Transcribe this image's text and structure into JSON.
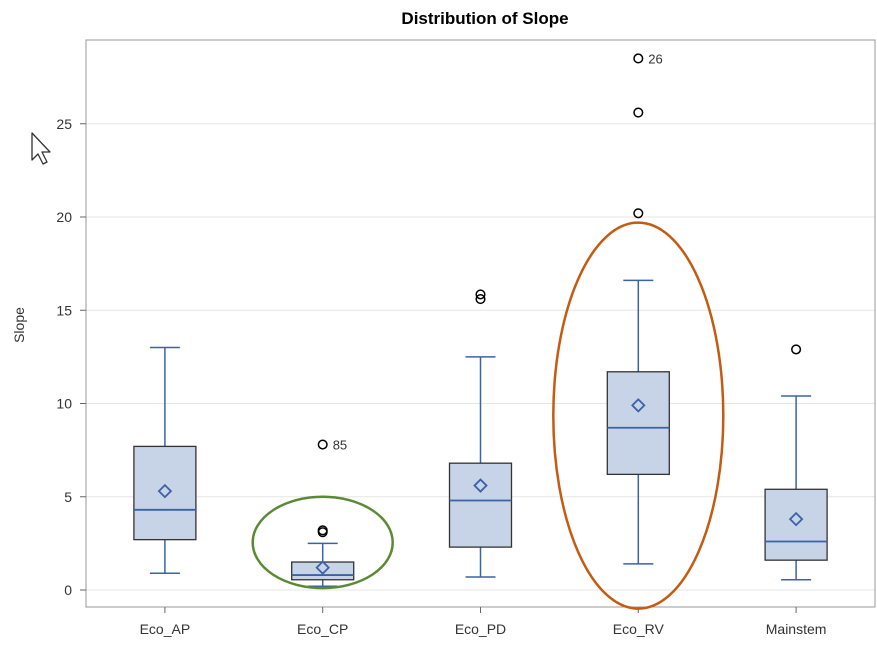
{
  "chart_data": {
    "type": "box",
    "title": "Distribution of Slope",
    "xlabel": "",
    "ylabel": "Slope",
    "ylim": [
      -1,
      29
    ],
    "yticks": [
      0,
      5,
      10,
      15,
      20,
      25
    ],
    "grid": true,
    "categories": [
      "Eco_AP",
      "Eco_CP",
      "Eco_PD",
      "Eco_RV",
      "Mainstem"
    ],
    "boxes": [
      {
        "category": "Eco_AP",
        "whisker_low": 0.9,
        "q1": 2.7,
        "median": 4.3,
        "q3": 7.7,
        "whisker_high": 13.0,
        "mean": 5.3,
        "outliers": []
      },
      {
        "category": "Eco_CP",
        "whisker_low": 0.2,
        "q1": 0.55,
        "median": 0.8,
        "q3": 1.5,
        "whisker_high": 2.5,
        "mean": 1.2,
        "outliers": [
          {
            "y": 3.1,
            "label": ""
          },
          {
            "y": 3.2,
            "label": ""
          },
          {
            "y": 7.8,
            "label": "85"
          }
        ]
      },
      {
        "category": "Eco_PD",
        "whisker_low": 0.7,
        "q1": 2.3,
        "median": 4.8,
        "q3": 6.8,
        "whisker_high": 12.5,
        "mean": 5.6,
        "outliers": [
          {
            "y": 15.6,
            "label": ""
          },
          {
            "y": 15.85,
            "label": ""
          }
        ]
      },
      {
        "category": "Eco_RV",
        "whisker_low": 1.4,
        "q1": 6.2,
        "median": 8.7,
        "q3": 11.7,
        "whisker_high": 16.6,
        "mean": 9.9,
        "outliers": [
          {
            "y": 20.2,
            "label": ""
          },
          {
            "y": 25.6,
            "label": ""
          },
          {
            "y": 28.5,
            "label": "26"
          }
        ]
      },
      {
        "category": "Mainstem",
        "whisker_low": 0.55,
        "q1": 1.6,
        "median": 2.6,
        "q3": 5.4,
        "whisker_high": 10.4,
        "mean": 3.8,
        "outliers": [
          {
            "y": 12.9,
            "label": ""
          }
        ]
      }
    ],
    "annotations": [
      {
        "type": "ellipse",
        "category": "Eco_CP",
        "ymin": 0.1,
        "ymax": 5.0,
        "color": "#5a8a32"
      },
      {
        "type": "ellipse",
        "category": "Eco_RV",
        "ymin": -1.0,
        "ymax": 19.7,
        "color": "#c55a11"
      }
    ],
    "colors": {
      "box_fill": "#c7d3e6",
      "box_edge": "#333333",
      "whisker": "#3b62a9",
      "median": "#3b62a9",
      "mean_marker": "#3b62a9",
      "outlier": "#000000",
      "grid": "#e6e6e6",
      "frame": "#999999"
    }
  }
}
